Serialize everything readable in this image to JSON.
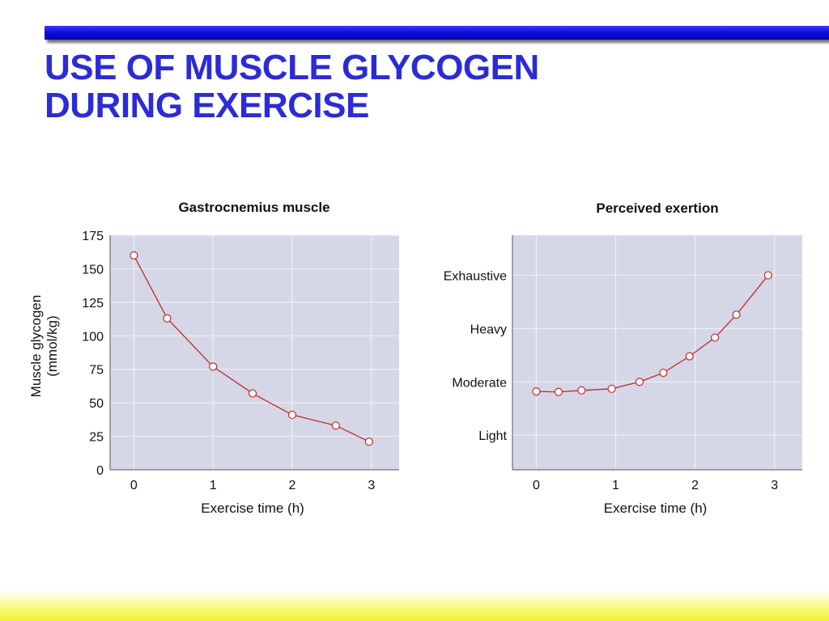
{
  "slide": {
    "title_line1": "USE OF MUSCLE GLYCOGEN",
    "title_line2": "DURING EXERCISE"
  },
  "colors": {
    "title": "#2b2bd8",
    "plot_bg": "#d6d7e6",
    "grid": "#eeeef5",
    "series": "#c0282d",
    "marker_fill": "#ffffff"
  },
  "chart_data": [
    {
      "type": "line",
      "title": "Gastrocnemius muscle",
      "xlabel": "Exercise time (h)",
      "ylabel_lines": [
        "Muscle glycogen",
        "(mmol/kg)"
      ],
      "xlim": [
        -0.3,
        3.35
      ],
      "ylim": [
        0,
        175
      ],
      "xticks": [
        0,
        1,
        2,
        3
      ],
      "yticks": [
        0,
        25,
        50,
        75,
        100,
        125,
        150,
        175
      ],
      "grid": true,
      "series": [
        {
          "x": [
            0,
            0.42,
            1.0,
            1.5,
            2.0,
            2.55,
            2.97
          ],
          "y": [
            160,
            113,
            77,
            57,
            41,
            33,
            21
          ]
        }
      ]
    },
    {
      "type": "line",
      "title": "Perceived exertion",
      "xlabel": "Exercise time (h)",
      "xlim": [
        -0.3,
        3.35
      ],
      "ylim": [
        0.35,
        4.75
      ],
      "xticks": [
        0,
        1,
        2,
        3
      ],
      "ytick_values": [
        1,
        2,
        3,
        4
      ],
      "ytick_labels": [
        "Light",
        "Moderate",
        "Heavy",
        "Exhaustive"
      ],
      "grid": true,
      "series": [
        {
          "x": [
            0,
            0.28,
            0.57,
            0.95,
            1.3,
            1.6,
            1.93,
            2.25,
            2.52,
            2.92
          ],
          "y": [
            1.82,
            1.81,
            1.84,
            1.87,
            2.0,
            2.17,
            2.48,
            2.83,
            3.26,
            4.0
          ]
        }
      ]
    }
  ]
}
